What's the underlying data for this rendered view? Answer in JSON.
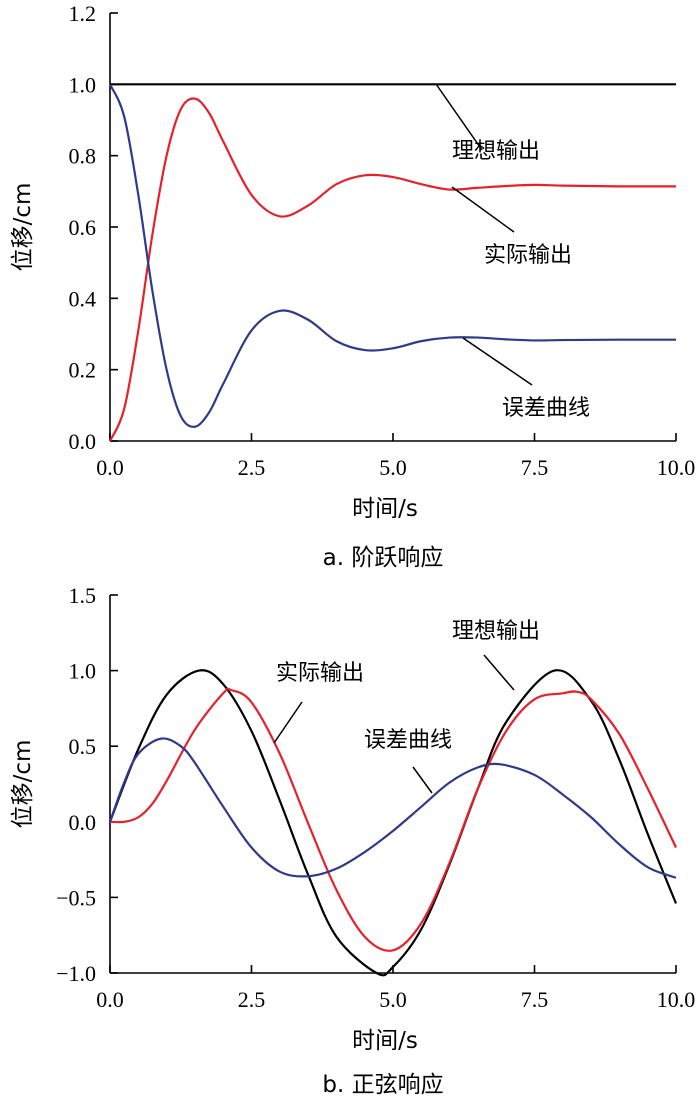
{
  "chart_data": [
    {
      "type": "line",
      "caption": "a. 阶跃响应",
      "xlabel": "时间/s",
      "ylabel": "位移/cm",
      "xlim": [
        0,
        10
      ],
      "ylim": [
        0,
        1.2
      ],
      "xticks": [
        0,
        2.5,
        5,
        7.5,
        10
      ],
      "xtick_labels": [
        "0.0",
        "2.5",
        "5.0",
        "7.5",
        "10.0"
      ],
      "yticks": [
        0,
        0.2,
        0.4,
        0.6,
        0.8,
        1.0,
        1.2
      ],
      "ytick_labels": [
        "0.0",
        "0.2",
        "0.4",
        "0.6",
        "0.8",
        "1.0",
        "1.2"
      ],
      "grid": false,
      "series": [
        {
          "name": "理想输出",
          "color": "#000000",
          "x": [
            0,
            10
          ],
          "y": [
            1.0,
            1.0
          ]
        },
        {
          "name": "实际输出",
          "color": "#e8202a",
          "x": [
            0,
            0.25,
            0.5,
            0.75,
            1.0,
            1.25,
            1.5,
            1.75,
            2.0,
            2.5,
            3.0,
            3.5,
            4.0,
            4.5,
            5.0,
            5.5,
            6.0,
            6.5,
            7.0,
            7.5,
            8.0,
            9.0,
            10.0
          ],
          "y": [
            0.0,
            0.09,
            0.31,
            0.58,
            0.8,
            0.93,
            0.96,
            0.92,
            0.84,
            0.69,
            0.63,
            0.66,
            0.72,
            0.745,
            0.74,
            0.72,
            0.705,
            0.71,
            0.715,
            0.718,
            0.716,
            0.714,
            0.714
          ]
        },
        {
          "name": "误差曲线",
          "color": "#2e3a8c",
          "x": [
            0,
            0.25,
            0.5,
            0.75,
            1.0,
            1.25,
            1.5,
            1.75,
            2.0,
            2.5,
            3.0,
            3.5,
            4.0,
            4.5,
            5.0,
            5.5,
            6.0,
            6.5,
            7.0,
            7.5,
            8.0,
            9.0,
            10.0
          ],
          "y": [
            1.0,
            0.91,
            0.69,
            0.42,
            0.2,
            0.07,
            0.04,
            0.08,
            0.16,
            0.31,
            0.365,
            0.34,
            0.28,
            0.255,
            0.26,
            0.28,
            0.29,
            0.29,
            0.285,
            0.282,
            0.283,
            0.284,
            0.284
          ]
        }
      ],
      "annotations": [
        {
          "text": "理想输出",
          "series": "理想输出",
          "at_x": 5.8
        },
        {
          "text": "实际输出",
          "series": "实际输出",
          "at_x": 6.1
        },
        {
          "text": "误差曲线",
          "series": "误差曲线",
          "at_x": 6.2
        }
      ]
    },
    {
      "type": "line",
      "caption": "b. 正弦响应",
      "xlabel": "时间/s",
      "ylabel": "位移/cm",
      "xlim": [
        0,
        10
      ],
      "ylim": [
        -1.0,
        1.5
      ],
      "xticks": [
        0,
        2.5,
        5,
        7.5,
        10
      ],
      "xtick_labels": [
        "0.0",
        "2.5",
        "5.0",
        "7.5",
        "10.0"
      ],
      "yticks": [
        -1.0,
        -0.5,
        0.0,
        0.5,
        1.0,
        1.5
      ],
      "ytick_labels": [
        "−1.0",
        "−0.5",
        "0.0",
        "0.5",
        "1.0",
        "1.5"
      ],
      "grid": false,
      "series": [
        {
          "name": "理想输出",
          "color": "#000000",
          "x": [
            0,
            0.5,
            1.0,
            1.57,
            2.0,
            2.5,
            3.0,
            3.5,
            4.0,
            4.71,
            5.0,
            5.5,
            6.0,
            6.5,
            7.0,
            7.85,
            8.5,
            9.0,
            9.5,
            10.0
          ],
          "y": [
            0.0,
            0.48,
            0.84,
            1.0,
            0.91,
            0.6,
            0.14,
            -0.35,
            -0.76,
            -1.0,
            -0.96,
            -0.71,
            -0.28,
            0.22,
            0.66,
            1.0,
            0.8,
            0.41,
            -0.08,
            -0.54
          ]
        },
        {
          "name": "实际输出",
          "color": "#e8202a",
          "x": [
            0,
            0.25,
            0.5,
            0.75,
            1.0,
            1.5,
            2.0,
            2.15,
            2.5,
            3.0,
            3.5,
            4.0,
            4.5,
            5.0,
            5.5,
            6.0,
            6.5,
            7.0,
            7.5,
            8.0,
            8.25,
            8.5,
            9.0,
            9.5,
            10.0
          ],
          "y": [
            0.0,
            0.0,
            0.03,
            0.12,
            0.27,
            0.61,
            0.85,
            0.87,
            0.79,
            0.45,
            -0.01,
            -0.45,
            -0.76,
            -0.85,
            -0.67,
            -0.27,
            0.22,
            0.6,
            0.81,
            0.85,
            0.86,
            0.81,
            0.58,
            0.22,
            -0.17
          ]
        },
        {
          "name": "误差曲线",
          "color": "#2e3a8c",
          "x": [
            0,
            0.25,
            0.5,
            0.9,
            1.25,
            1.5,
            2.0,
            2.5,
            3.0,
            3.5,
            4.0,
            4.5,
            5.0,
            5.5,
            6.0,
            6.5,
            6.9,
            7.5,
            8.0,
            8.5,
            9.0,
            9.5,
            10.0
          ],
          "y": [
            0.0,
            0.26,
            0.45,
            0.55,
            0.5,
            0.39,
            0.1,
            -0.17,
            -0.33,
            -0.36,
            -0.31,
            -0.2,
            -0.06,
            0.1,
            0.26,
            0.36,
            0.38,
            0.31,
            0.18,
            0.03,
            -0.15,
            -0.3,
            -0.37
          ]
        }
      ],
      "annotations": [
        {
          "text": "理想输出",
          "series": "理想输出",
          "at_x": 7.3
        },
        {
          "text": "实际输出",
          "series": "实际输出",
          "at_x": 2.9
        },
        {
          "text": "误差曲线",
          "series": "误差曲线",
          "at_x": 5.7
        }
      ]
    }
  ]
}
